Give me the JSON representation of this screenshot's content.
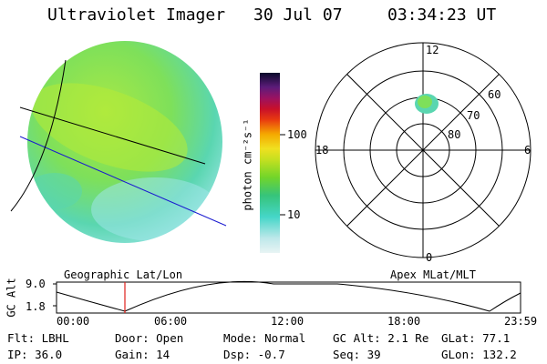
{
  "header": {
    "title": "Ultraviolet Imager",
    "date": "30 Jul 07",
    "time": "03:34:23 UT"
  },
  "colorbar": {
    "label": "photon cm⁻²s⁻¹",
    "ticks": [
      "100",
      "10"
    ]
  },
  "polar": {
    "mlt_labels": [
      "12",
      "18",
      "6",
      "0"
    ],
    "lat_labels": [
      "60",
      "70",
      "80"
    ]
  },
  "timeline": {
    "ylabel": "GC Alt",
    "y_ticks": [
      "9.0",
      "1.8"
    ],
    "left_title": "Geographic Lat/Lon",
    "right_title": "Apex MLat/MLT",
    "x_ticks": [
      "00:00",
      "06:00",
      "12:00",
      "18:00",
      "23:59"
    ]
  },
  "info": {
    "filter": "Flt: LBHL",
    "ip": "IP: 36.0",
    "door": "Door: Open",
    "gain": "Gain: 14",
    "mode": "Mode: Normal",
    "dsp": "Dsp:    -0.7",
    "gc_alt": "GC Alt: 2.1 Re",
    "seq": "Seq: 39",
    "glat": "GLat:  77.1",
    "glon": "GLon: 132.2"
  }
}
